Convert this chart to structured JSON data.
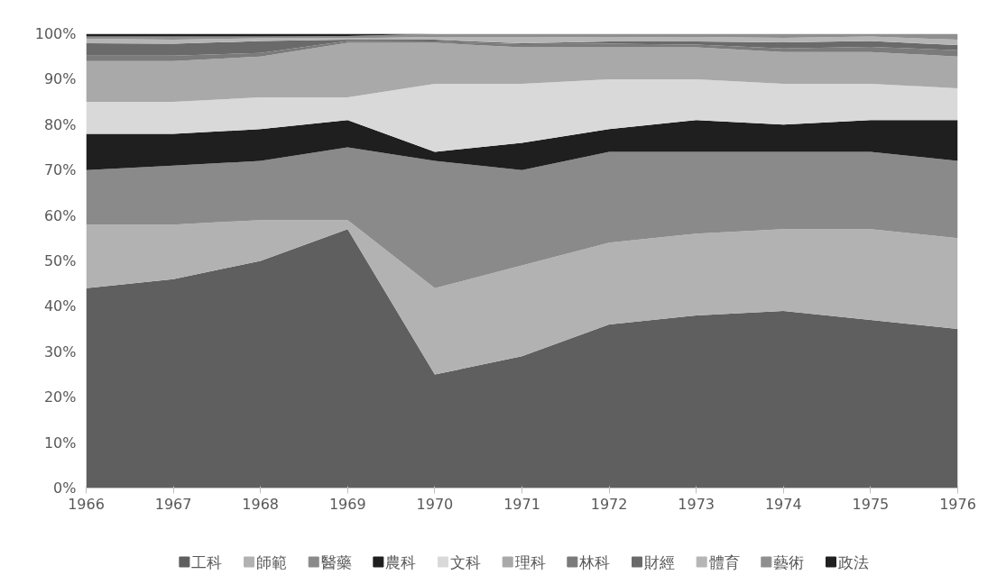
{
  "chart_data": {
    "type": "area",
    "stacked": true,
    "legend": "bottom",
    "x": [
      1966,
      1967,
      1968,
      1969,
      1970,
      1971,
      1972,
      1973,
      1974,
      1975,
      1976
    ],
    "xlim": [
      1966,
      1976
    ],
    "xticks": [
      1966,
      1967,
      1968,
      1969,
      1970,
      1971,
      1972,
      1973,
      1974,
      1975,
      1976
    ],
    "ylim": [
      0,
      100
    ],
    "yticks": [
      {
        "value": 0,
        "label": "0%"
      },
      {
        "value": 10,
        "label": "10%"
      },
      {
        "value": 20,
        "label": "20%"
      },
      {
        "value": 30,
        "label": "30%"
      },
      {
        "value": 40,
        "label": "40%"
      },
      {
        "value": 50,
        "label": "50%"
      },
      {
        "value": 60,
        "label": "60%"
      },
      {
        "value": 70,
        "label": "70%"
      },
      {
        "value": 80,
        "label": "80%"
      },
      {
        "value": 90,
        "label": "90%"
      },
      {
        "value": 100,
        "label": "100%"
      }
    ],
    "series": [
      {
        "name": "工科",
        "color": "#5f5f5f",
        "values": [
          44,
          46,
          50,
          57,
          25,
          29,
          36,
          38,
          39,
          37,
          35
        ]
      },
      {
        "name": "師範",
        "color": "#b2b2b2",
        "values": [
          14,
          12,
          9,
          2,
          19,
          20,
          18,
          18,
          18,
          20,
          20
        ]
      },
      {
        "name": "醫藥",
        "color": "#8a8a8a",
        "values": [
          12,
          13,
          13,
          16,
          28,
          21,
          20,
          18,
          17,
          17,
          17
        ]
      },
      {
        "name": "農科",
        "color": "#1f1f1f",
        "values": [
          8,
          7,
          7,
          6,
          2,
          6,
          5,
          7,
          6,
          7,
          9
        ]
      },
      {
        "name": "文科",
        "color": "#d9d9d9",
        "values": [
          7,
          7,
          7,
          5,
          15,
          13,
          11,
          9,
          9,
          8,
          7
        ]
      },
      {
        "name": "理科",
        "color": "#a9a9a9",
        "values": [
          9,
          9,
          9,
          12,
          9,
          8,
          7,
          7,
          7,
          7,
          7
        ]
      },
      {
        "name": "林科",
        "color": "#7b7b7b",
        "values": [
          1.2,
          1.2,
          0.8,
          0.4,
          0.3,
          0.7,
          0.8,
          0.6,
          0.8,
          1.1,
          1.4
        ]
      },
      {
        "name": "財經",
        "color": "#6a6a6a",
        "values": [
          2.7,
          2.6,
          2.6,
          0.3,
          0.4,
          0.2,
          0.5,
          0.7,
          1.3,
          1.3,
          1.1
        ]
      },
      {
        "name": "體育",
        "color": "#b5b5b5",
        "values": [
          1,
          0.9,
          0.6,
          0.3,
          0.6,
          1.4,
          0.9,
          1.0,
          1.0,
          1.0,
          1.2
        ]
      },
      {
        "name": "藝術",
        "color": "#8f8f8f",
        "values": [
          0.5,
          0.7,
          0.4,
          0.5,
          0.7,
          0.7,
          0.8,
          0.7,
          0.9,
          0.6,
          1.3
        ]
      },
      {
        "name": "政法",
        "color": "#202020",
        "values": [
          0.6,
          0.6,
          0.6,
          0.5,
          0,
          0,
          0,
          0,
          0,
          0,
          0
        ]
      }
    ]
  }
}
